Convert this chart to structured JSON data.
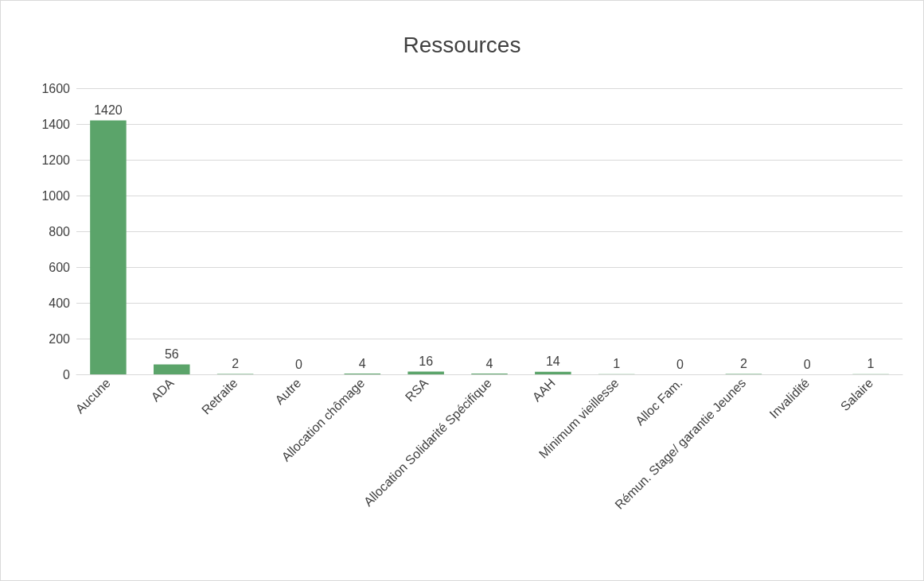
{
  "chart_data": {
    "type": "bar",
    "title": "Ressources",
    "categories": [
      "Aucune",
      "ADA",
      "Retraite",
      "Autre",
      "Allocation chômage",
      "RSA",
      "Allocation Solidarité Spécifique",
      "AAH",
      "Minimum vieillesse",
      "Alloc Fam.",
      "Rémun. Stage/ garantie Jeunes",
      "Invalidité",
      "Salaire"
    ],
    "values": [
      1420,
      56,
      2,
      0,
      4,
      16,
      4,
      14,
      1,
      0,
      2,
      0,
      1
    ],
    "color": "#5ba46a",
    "ylim": [
      0,
      1600
    ],
    "yticks": [
      0,
      200,
      400,
      600,
      800,
      1000,
      1200,
      1400,
      1600
    ],
    "grid": "y",
    "data_labels": true
  }
}
